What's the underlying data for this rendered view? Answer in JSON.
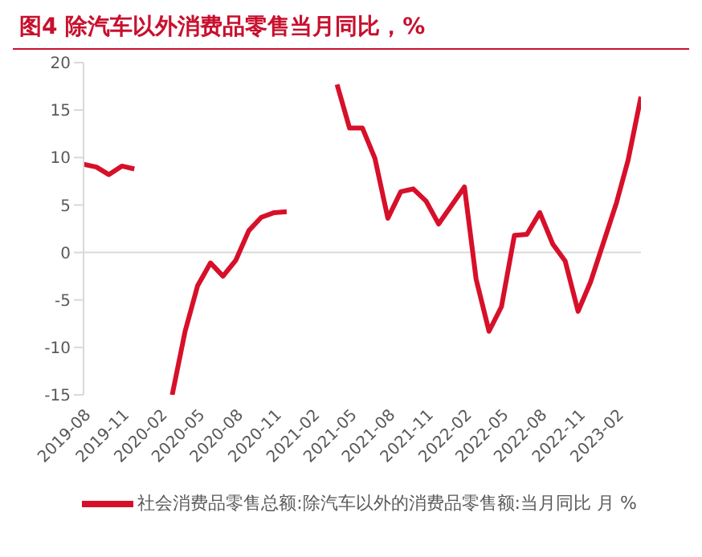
{
  "chart_data": {
    "type": "line",
    "title": "图4  除汽车以外消费品零售当月同比，%",
    "x": [
      "2019-08",
      "2019-09",
      "2019-10",
      "2019-11",
      "2019-12",
      "2020-02",
      "2020-03",
      "2020-04",
      "2020-05",
      "2020-06",
      "2020-07",
      "2020-08",
      "2020-09",
      "2020-10",
      "2020-11",
      "2020-12",
      "2021-02",
      "2021-03",
      "2021-04",
      "2021-05",
      "2021-06",
      "2021-07",
      "2021-08",
      "2021-09",
      "2021-10",
      "2021-11",
      "2021-12",
      "2022-02",
      "2022-03",
      "2022-04",
      "2022-05",
      "2022-06",
      "2022-07",
      "2022-08",
      "2022-09",
      "2022-10",
      "2022-11",
      "2022-12",
      "2023-02",
      "2023-03",
      "2023-04"
    ],
    "series": [
      {
        "name": "社会消费品零售总额:除汽车以外的消费品零售额:当月同比 月 %",
        "color": "#d7102a",
        "values": [
          9.3,
          9.0,
          8.2,
          9.1,
          8.8,
          null,
          -15,
          -8.3,
          -3.5,
          -1.1,
          -2.5,
          -0.8,
          2.3,
          3.7,
          4.2,
          4.3,
          null,
          null,
          17.7,
          13.1,
          13.1,
          9.9,
          3.6,
          6.4,
          6.7,
          5.4,
          3.0,
          6.9,
          -2.8,
          -8.3,
          -5.7,
          1.8,
          1.9,
          4.2,
          0.9,
          -0.9,
          -6.2,
          -3.1,
          5.2,
          9.7,
          16.4
        ]
      }
    ],
    "xlim": [
      "2019-08",
      "2023-04"
    ],
    "xticks": [
      "2019-08",
      "2019-11",
      "2020-02",
      "2020-05",
      "2020-08",
      "2020-11",
      "2021-02",
      "2021-05",
      "2021-08",
      "2021-11",
      "2022-02",
      "2022-05",
      "2022-08",
      "2022-11",
      "2023-02"
    ],
    "ylim": [
      -15,
      20
    ],
    "yticks": [
      -15,
      -10,
      -5,
      0,
      5,
      10,
      15,
      20
    ],
    "ref_lines": [
      {
        "axis": "y",
        "value": 0,
        "color": "#d9d9d9"
      }
    ],
    "grid": false,
    "legend": "bottom",
    "marker": "none",
    "line_style": "solid"
  }
}
